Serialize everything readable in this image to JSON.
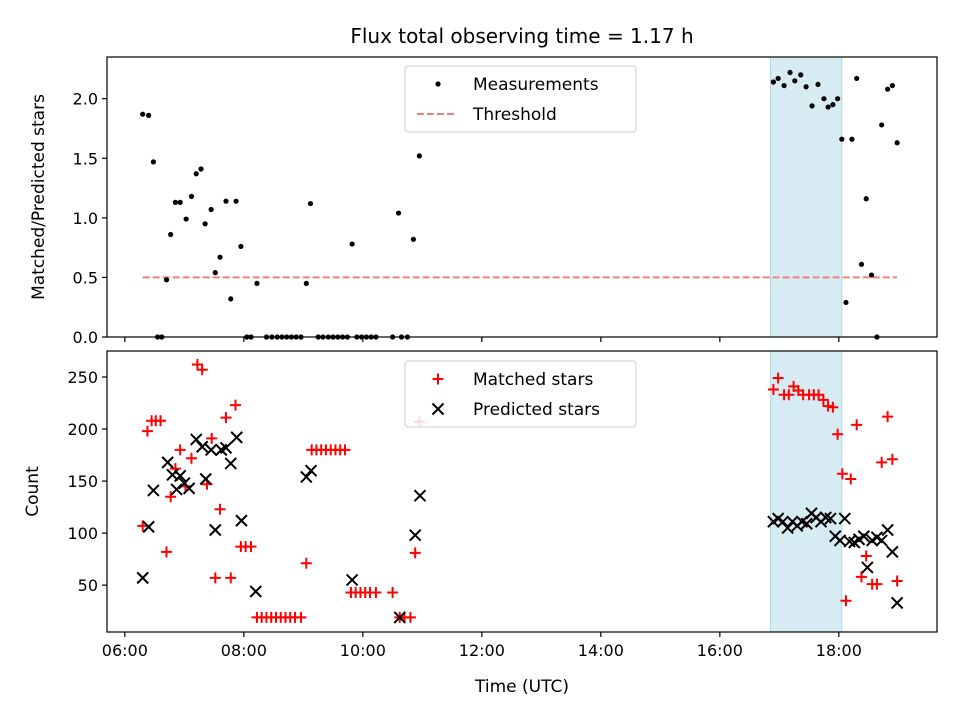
{
  "figure": {
    "title": "Flux total observing time = 1.17 h",
    "xlabel": "Time (UTC)",
    "x_ticks": [
      "06:00",
      "08:00",
      "10:00",
      "12:00",
      "14:00",
      "16:00",
      "18:00"
    ]
  },
  "colors": {
    "measure": "#000000",
    "threshold": "#f08080",
    "matched": "#ff0000",
    "predicted": "#000000",
    "span": "#add8e6"
  },
  "chart_data": [
    {
      "type": "scatter",
      "ylabel": "Matched/Predicted stars",
      "xlim": [
        5.7,
        19.65
      ],
      "ylim": [
        0,
        2.35
      ],
      "y_ticks": [
        0,
        0.5,
        1.0,
        1.5,
        2.0
      ],
      "y_tick_labels": [
        "0.0",
        "0.5",
        "1.0",
        "1.5",
        "2.0"
      ],
      "legend": {
        "placement": "upper center",
        "entries": [
          "Measurements",
          "Threshold"
        ]
      },
      "highlight_span": [
        16.85,
        18.05
      ],
      "threshold": {
        "name": "Threshold",
        "x": [
          6.3,
          18.98
        ],
        "y": 0.5
      },
      "series": [
        {
          "name": "Measurements",
          "points": [
            [
              6.3,
              1.87
            ],
            [
              6.4,
              1.86
            ],
            [
              6.48,
              1.47
            ],
            [
              6.55,
              0
            ],
            [
              6.62,
              0
            ],
            [
              6.7,
              0.48
            ],
            [
              6.77,
              0.86
            ],
            [
              6.85,
              1.13
            ],
            [
              6.93,
              1.13
            ],
            [
              7.03,
              0.99
            ],
            [
              7.12,
              1.18
            ],
            [
              7.2,
              1.37
            ],
            [
              7.28,
              1.41
            ],
            [
              7.35,
              0.95
            ],
            [
              7.45,
              1.07
            ],
            [
              7.52,
              0.54
            ],
            [
              7.6,
              0.67
            ],
            [
              7.7,
              1.14
            ],
            [
              7.78,
              0.32
            ],
            [
              7.87,
              1.14
            ],
            [
              7.95,
              0.76
            ],
            [
              8.05,
              0
            ],
            [
              8.12,
              0
            ],
            [
              8.22,
              0.45
            ],
            [
              8.38,
              0
            ],
            [
              8.47,
              0
            ],
            [
              8.56,
              0
            ],
            [
              8.64,
              0
            ],
            [
              8.72,
              0
            ],
            [
              8.8,
              0
            ],
            [
              8.88,
              0
            ],
            [
              8.96,
              0
            ],
            [
              9.05,
              0.45
            ],
            [
              9.12,
              1.12
            ],
            [
              9.25,
              0
            ],
            [
              9.33,
              0
            ],
            [
              9.42,
              0
            ],
            [
              9.5,
              0
            ],
            [
              9.58,
              0
            ],
            [
              9.66,
              0
            ],
            [
              9.74,
              0
            ],
            [
              9.82,
              0.78
            ],
            [
              9.9,
              0
            ],
            [
              9.98,
              0
            ],
            [
              10.06,
              0
            ],
            [
              10.14,
              0
            ],
            [
              10.22,
              0
            ],
            [
              10.5,
              0
            ],
            [
              10.6,
              1.04
            ],
            [
              10.65,
              0
            ],
            [
              10.75,
              0
            ],
            [
              10.85,
              0.82
            ],
            [
              10.95,
              1.52
            ],
            [
              16.9,
              2.14
            ],
            [
              16.98,
              2.17
            ],
            [
              17.08,
              2.11
            ],
            [
              17.18,
              2.22
            ],
            [
              17.26,
              2.15
            ],
            [
              17.36,
              2.2
            ],
            [
              17.45,
              2.1
            ],
            [
              17.55,
              1.94
            ],
            [
              17.65,
              2.12
            ],
            [
              17.75,
              2.0
            ],
            [
              17.82,
              1.93
            ],
            [
              17.9,
              1.95
            ],
            [
              17.98,
              2.0
            ],
            [
              18.05,
              1.66
            ],
            [
              18.12,
              0.29
            ],
            [
              18.22,
              1.66
            ],
            [
              18.3,
              2.17
            ],
            [
              18.38,
              0.61
            ],
            [
              18.46,
              1.16
            ],
            [
              18.55,
              0.52
            ],
            [
              18.64,
              0
            ],
            [
              18.72,
              1.78
            ],
            [
              18.82,
              2.08
            ],
            [
              18.9,
              2.11
            ],
            [
              18.98,
              1.63
            ]
          ]
        }
      ]
    },
    {
      "type": "scatter",
      "ylabel": "Count",
      "xlim": [
        5.7,
        19.65
      ],
      "ylim": [
        5,
        275
      ],
      "y_ticks": [
        50,
        100,
        150,
        200,
        250
      ],
      "y_tick_labels": [
        "50",
        "100",
        "150",
        "200",
        "250"
      ],
      "legend": {
        "placement": "upper center",
        "entries": [
          "Matched stars",
          "Predicted stars"
        ]
      },
      "highlight_span": [
        16.85,
        18.05
      ],
      "series": [
        {
          "name": "Matched stars",
          "marker": "plus",
          "points": [
            [
              6.3,
              107
            ],
            [
              6.38,
              198
            ],
            [
              6.45,
              208
            ],
            [
              6.52,
              208
            ],
            [
              6.6,
              208
            ],
            [
              6.7,
              82
            ],
            [
              6.77,
              135
            ],
            [
              6.85,
              162
            ],
            [
              6.93,
              180
            ],
            [
              7.02,
              145
            ],
            [
              7.12,
              172
            ],
            [
              7.22,
              262
            ],
            [
              7.3,
              257
            ],
            [
              7.38,
              147
            ],
            [
              7.46,
              191
            ],
            [
              7.52,
              57
            ],
            [
              7.6,
              123
            ],
            [
              7.7,
              211
            ],
            [
              7.78,
              57
            ],
            [
              7.86,
              223
            ],
            [
              7.95,
              87
            ],
            [
              8.03,
              87
            ],
            [
              8.12,
              87
            ],
            [
              8.22,
              19
            ],
            [
              8.3,
              19
            ],
            [
              8.38,
              19
            ],
            [
              8.46,
              19
            ],
            [
              8.54,
              19
            ],
            [
              8.62,
              19
            ],
            [
              8.7,
              19
            ],
            [
              8.78,
              19
            ],
            [
              8.86,
              19
            ],
            [
              8.96,
              19
            ],
            [
              9.05,
              71
            ],
            [
              9.14,
              180
            ],
            [
              9.22,
              180
            ],
            [
              9.3,
              180
            ],
            [
              9.38,
              180
            ],
            [
              9.46,
              180
            ],
            [
              9.54,
              180
            ],
            [
              9.62,
              180
            ],
            [
              9.7,
              180
            ],
            [
              9.8,
              43
            ],
            [
              9.88,
              43
            ],
            [
              9.96,
              43
            ],
            [
              10.04,
              43
            ],
            [
              10.12,
              43
            ],
            [
              10.22,
              43
            ],
            [
              10.5,
              43
            ],
            [
              10.62,
              19
            ],
            [
              10.7,
              19
            ],
            [
              10.8,
              19
            ],
            [
              10.88,
              81
            ],
            [
              10.95,
              207
            ],
            [
              16.9,
              238
            ],
            [
              16.98,
              249
            ],
            [
              17.08,
              233
            ],
            [
              17.16,
              233
            ],
            [
              17.24,
              241
            ],
            [
              17.32,
              237
            ],
            [
              17.4,
              233
            ],
            [
              17.5,
              233
            ],
            [
              17.58,
              233
            ],
            [
              17.66,
              233
            ],
            [
              17.74,
              228
            ],
            [
              17.82,
              222
            ],
            [
              17.9,
              221
            ],
            [
              17.98,
              195
            ],
            [
              18.06,
              157
            ],
            [
              18.12,
              35
            ],
            [
              18.2,
              152
            ],
            [
              18.3,
              204
            ],
            [
              18.38,
              58
            ],
            [
              18.46,
              78
            ],
            [
              18.56,
              51
            ],
            [
              18.64,
              51
            ],
            [
              18.72,
              168
            ],
            [
              18.82,
              212
            ],
            [
              18.9,
              171
            ],
            [
              18.98,
              54
            ]
          ]
        },
        {
          "name": "Predicted stars",
          "marker": "x",
          "points": [
            [
              6.3,
              57
            ],
            [
              6.4,
              106
            ],
            [
              6.48,
              141
            ],
            [
              6.72,
              168
            ],
            [
              6.8,
              156
            ],
            [
              6.87,
              142
            ],
            [
              6.93,
              155
            ],
            [
              7.0,
              148
            ],
            [
              7.08,
              143
            ],
            [
              7.2,
              190
            ],
            [
              7.3,
              183
            ],
            [
              7.36,
              152
            ],
            [
              7.45,
              180
            ],
            [
              7.52,
              103
            ],
            [
              7.62,
              180
            ],
            [
              7.7,
              182
            ],
            [
              7.78,
              167
            ],
            [
              7.88,
              192
            ],
            [
              7.96,
              112
            ],
            [
              8.2,
              44
            ],
            [
              9.05,
              154
            ],
            [
              9.13,
              160
            ],
            [
              9.82,
              55
            ],
            [
              10.62,
              19
            ],
            [
              10.88,
              98
            ],
            [
              10.96,
              136
            ],
            [
              16.9,
              111
            ],
            [
              16.98,
              114
            ],
            [
              17.06,
              111
            ],
            [
              17.14,
              105
            ],
            [
              17.22,
              111
            ],
            [
              17.3,
              107
            ],
            [
              17.38,
              111
            ],
            [
              17.46,
              109
            ],
            [
              17.54,
              119
            ],
            [
              17.62,
              115
            ],
            [
              17.7,
              111
            ],
            [
              17.78,
              115
            ],
            [
              17.86,
              114
            ],
            [
              17.94,
              97
            ],
            [
              18.02,
              93
            ],
            [
              18.1,
              114
            ],
            [
              18.18,
              92
            ],
            [
              18.26,
              91
            ],
            [
              18.34,
              94
            ],
            [
              18.42,
              97
            ],
            [
              18.48,
              67
            ],
            [
              18.56,
              93
            ],
            [
              18.64,
              96
            ],
            [
              18.72,
              93
            ],
            [
              18.82,
              103
            ],
            [
              18.9,
              82
            ],
            [
              18.98,
              33
            ]
          ]
        }
      ]
    }
  ]
}
